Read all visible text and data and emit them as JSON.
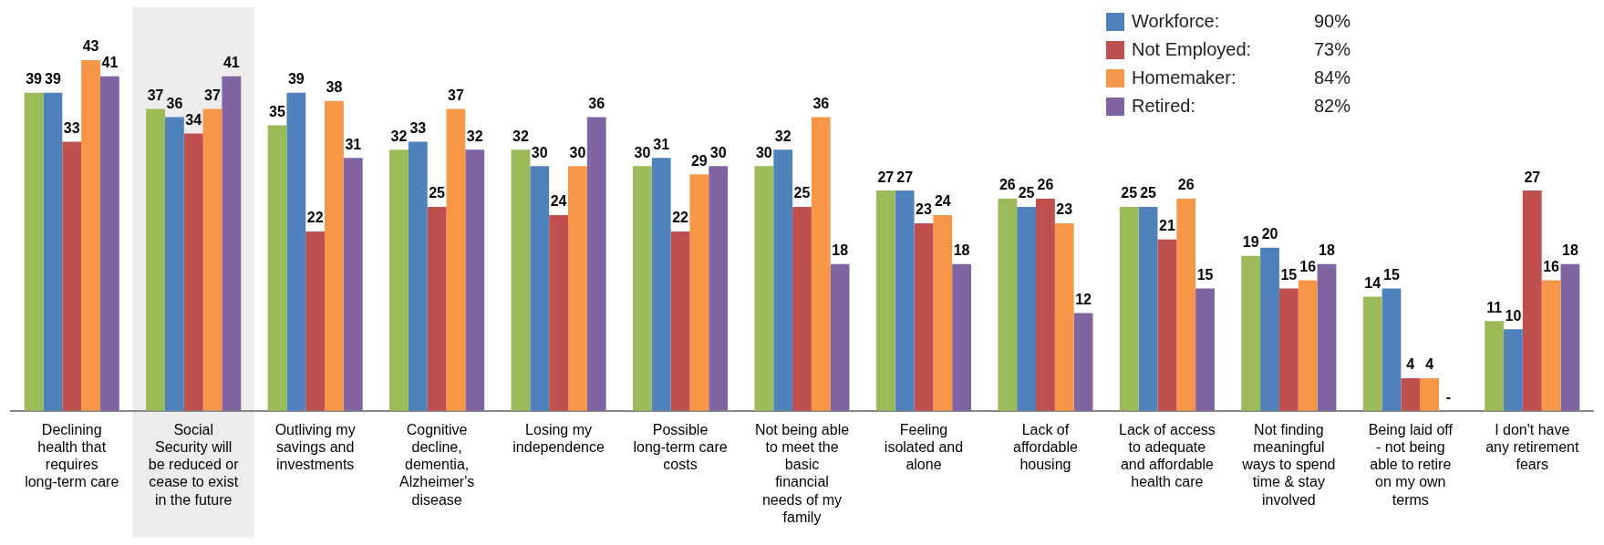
{
  "chart_data": {
    "type": "bar",
    "categories": [
      "Declining health that requires long-term care",
      "Social Security will be reduced or cease to exist in the future",
      "Outliving my savings and investments",
      "Cognitive decline, dementia, Alzheimer's disease",
      "Losing my independence",
      "Possible long-term care costs",
      "Not being able to meet the basic financial needs of my family",
      "Feeling isolated and alone",
      "Lack of affordable housing",
      "Lack of access to adequate and affordable health care",
      "Not finding meaningful ways to spend time & stay involved",
      "Being laid off - not being able to retire on my own terms",
      "I don't have any retirement fears"
    ],
    "series": [
      {
        "color": "#9bbb59",
        "values": [
          39,
          37,
          35,
          32,
          32,
          30,
          30,
          27,
          26,
          25,
          19,
          14,
          11
        ]
      },
      {
        "name": "Workforce:",
        "color": "#4f81bd",
        "values": [
          39,
          36,
          39,
          33,
          30,
          31,
          32,
          27,
          25,
          25,
          20,
          15,
          10
        ]
      },
      {
        "name": "Not Employed:",
        "color": "#c0504d",
        "values": [
          33,
          34,
          22,
          25,
          24,
          22,
          25,
          23,
          26,
          21,
          15,
          4,
          27
        ]
      },
      {
        "name": "Homemaker:",
        "color": "#f79646",
        "values": [
          43,
          37,
          38,
          37,
          30,
          29,
          36,
          24,
          23,
          26,
          16,
          4,
          16
        ]
      },
      {
        "name": "Retired:",
        "color": "#8064a2",
        "values": [
          41,
          41,
          31,
          32,
          36,
          30,
          18,
          18,
          12,
          15,
          18,
          null,
          18
        ],
        "value_labels": [
          "41",
          "41",
          "31",
          "32",
          "36",
          "30",
          "18",
          "18",
          "12",
          "15",
          "18",
          "-",
          "18"
        ]
      }
    ],
    "annotations": [
      "90%",
      "73%",
      "84%",
      "82%"
    ],
    "bands": [
      {
        "axis": "x",
        "from": "Social Security will be reduced or cease to exist in the future",
        "to": "Social Security will be reduced or cease to exist in the future",
        "color": "#ededed"
      }
    ],
    "data_labels": true,
    "tick_labels": "x",
    "grid": false,
    "legend": "top right"
  }
}
